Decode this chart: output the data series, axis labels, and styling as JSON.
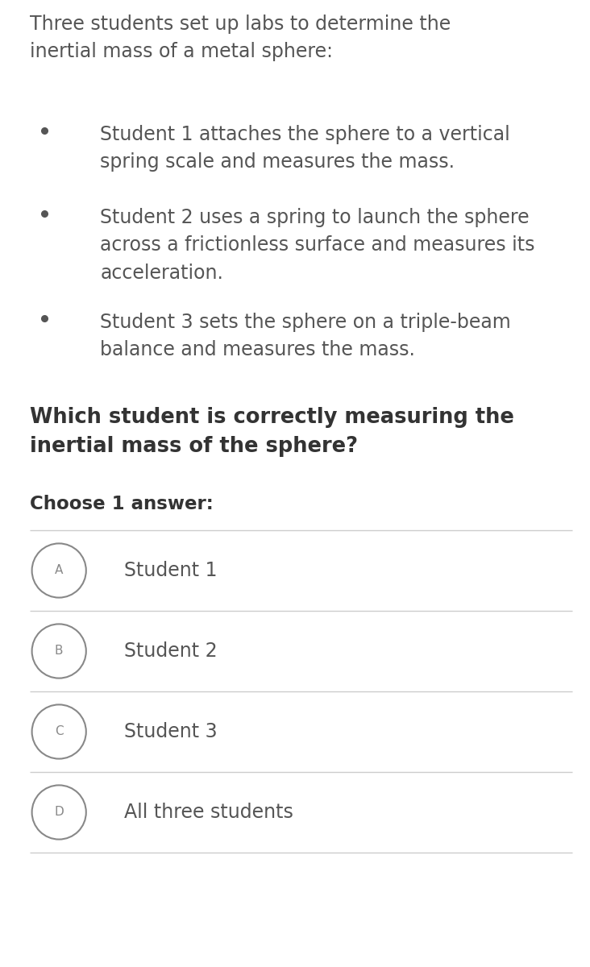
{
  "bg_color": "#ffffff",
  "text_color": "#555555",
  "bold_color": "#333333",
  "line_color": "#cccccc",
  "circle_color": "#888888",
  "intro_text": "Three students set up labs to determine the\ninertial mass of a metal sphere:",
  "bullets": [
    "Student 1 attaches the sphere to a vertical\nspring scale and measures the mass.",
    "Student 2 uses a spring to launch the sphere\nacross a frictionless surface and measures its\nacceleration.",
    "Student 3 sets the sphere on a triple-beam\nbalance and measures the mass."
  ],
  "question_text": "Which student is correctly measuring the\ninertial mass of the sphere?",
  "choose_text": "Choose 1 answer:",
  "options": [
    {
      "label": "A",
      "text": "Student 1"
    },
    {
      "label": "B",
      "text": "Student 2"
    },
    {
      "label": "C",
      "text": "Student 3"
    },
    {
      "label": "D",
      "text": "All three students"
    }
  ],
  "intro_fontsize": 17.0,
  "bullet_fontsize": 17.0,
  "question_fontsize": 18.5,
  "choose_fontsize": 16.5,
  "option_fontsize": 17.0,
  "figwidth": 7.32,
  "figheight": 12.0,
  "dpi": 100
}
